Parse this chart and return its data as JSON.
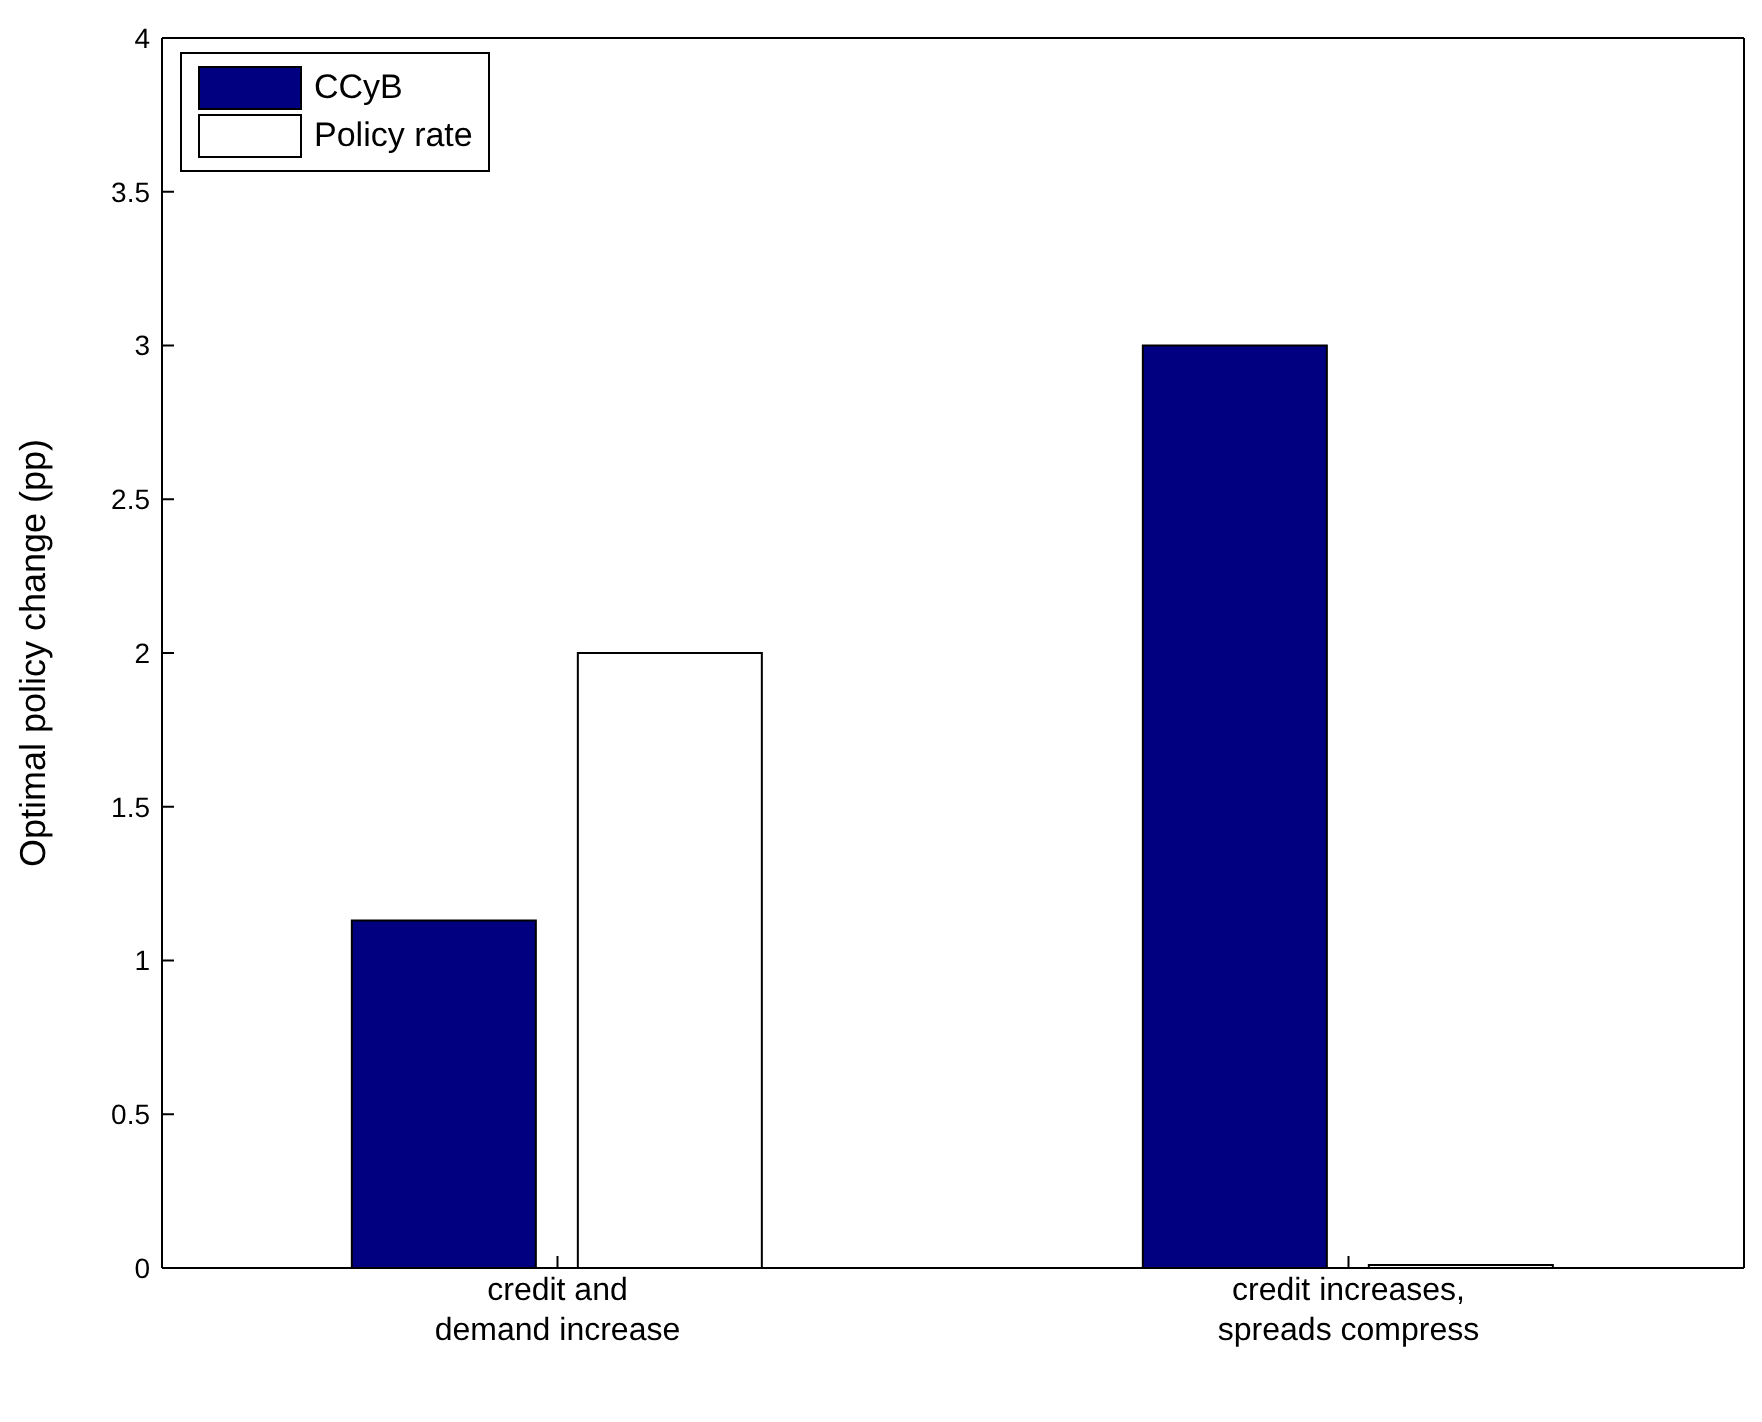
{
  "chart_data": {
    "type": "bar",
    "ylabel": "Optimal policy change (pp)",
    "categories": [
      "credit and\ndemand increase",
      "credit increases,\nspreads compress"
    ],
    "series": [
      {
        "name": "CCyB",
        "color": "#000080",
        "values": [
          1.13,
          3.0
        ]
      },
      {
        "name": "Policy rate",
        "color": "#ffffff",
        "values": [
          2.0,
          0.01
        ]
      }
    ],
    "ylim": [
      0,
      4
    ],
    "yticks": [
      0,
      0.5,
      1,
      1.5,
      2,
      2.5,
      3,
      3.5,
      4
    ],
    "legend": "top left"
  }
}
